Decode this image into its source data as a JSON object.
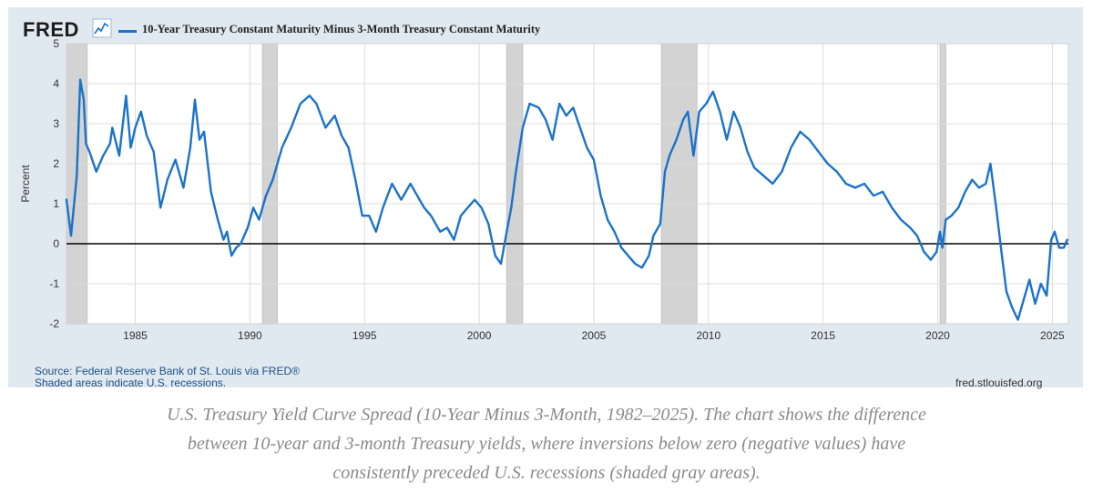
{
  "header": {
    "logo_text": "FRED",
    "logo_icon": "line-chart-icon",
    "accent_color": "#1a73c9"
  },
  "chart_data": {
    "type": "line",
    "title": "",
    "xlabel": "",
    "ylabel": "Percent",
    "xlim": [
      1982.0,
      2025.7
    ],
    "ylim": [
      -2,
      5
    ],
    "yticks": [
      -2,
      -1,
      0,
      1,
      2,
      3,
      4,
      5
    ],
    "xticks": [
      1985,
      1990,
      1995,
      2000,
      2005,
      2010,
      2015,
      2020,
      2025
    ],
    "grid": true,
    "legend_position": "top-left",
    "zero_line": true,
    "recession_color": "#d3d3d3",
    "recessions": [
      [
        1981.55,
        1982.9
      ],
      [
        1990.55,
        1991.2
      ],
      [
        2001.2,
        2001.9
      ],
      [
        2007.95,
        2009.5
      ],
      [
        2020.1,
        2020.35
      ]
    ],
    "series": [
      {
        "name": "10-Year Treasury Constant Maturity Minus 3-Month Treasury Constant Maturity",
        "color": "#1a73c9",
        "x": [
          1982.0,
          1982.2,
          1982.45,
          1982.6,
          1982.75,
          1982.85,
          1983.0,
          1983.3,
          1983.6,
          1983.9,
          1984.0,
          1984.3,
          1984.6,
          1984.8,
          1985.0,
          1985.25,
          1985.5,
          1985.8,
          1986.1,
          1986.4,
          1986.75,
          1987.1,
          1987.4,
          1987.6,
          1987.8,
          1988.0,
          1988.3,
          1988.6,
          1988.85,
          1989.0,
          1989.2,
          1989.4,
          1989.6,
          1989.9,
          1990.15,
          1990.4,
          1990.7,
          1991.0,
          1991.4,
          1991.8,
          1992.2,
          1992.6,
          1992.9,
          1993.3,
          1993.7,
          1994.0,
          1994.3,
          1994.6,
          1994.9,
          1995.2,
          1995.5,
          1995.8,
          1996.2,
          1996.6,
          1997.0,
          1997.3,
          1997.6,
          1997.9,
          1998.3,
          1998.6,
          1998.9,
          1999.2,
          1999.5,
          1999.8,
          2000.1,
          2000.4,
          2000.7,
          2000.95,
          2001.2,
          2001.4,
          2001.6,
          2001.9,
          2002.2,
          2002.6,
          2002.9,
          2003.2,
          2003.5,
          2003.8,
          2004.1,
          2004.4,
          2004.7,
          2005.0,
          2005.3,
          2005.6,
          2005.9,
          2006.2,
          2006.5,
          2006.8,
          2007.1,
          2007.4,
          2007.6,
          2007.9,
          2008.1,
          2008.3,
          2008.6,
          2008.9,
          2009.1,
          2009.35,
          2009.6,
          2009.9,
          2010.2,
          2010.5,
          2010.8,
          2011.1,
          2011.4,
          2011.7,
          2012.0,
          2012.4,
          2012.8,
          2013.2,
          2013.6,
          2014.0,
          2014.4,
          2014.8,
          2015.2,
          2015.6,
          2016.0,
          2016.4,
          2016.8,
          2017.2,
          2017.6,
          2018.0,
          2018.4,
          2018.8,
          2019.1,
          2019.4,
          2019.7,
          2019.95,
          2020.1,
          2020.2,
          2020.35,
          2020.6,
          2020.9,
          2021.2,
          2021.5,
          2021.8,
          2022.1,
          2022.3,
          2022.55,
          2022.8,
          2023.0,
          2023.25,
          2023.5,
          2023.75,
          2024.0,
          2024.25,
          2024.5,
          2024.75,
          2024.95,
          2025.1,
          2025.3,
          2025.5,
          2025.65
        ],
        "values": [
          1.1,
          0.2,
          1.7,
          4.1,
          3.6,
          2.5,
          2.3,
          1.8,
          2.2,
          2.5,
          2.9,
          2.2,
          3.7,
          2.4,
          2.9,
          3.3,
          2.7,
          2.3,
          0.9,
          1.6,
          2.1,
          1.4,
          2.4,
          3.6,
          2.6,
          2.8,
          1.3,
          0.6,
          0.1,
          0.3,
          -0.3,
          -0.1,
          0.0,
          0.4,
          0.9,
          0.6,
          1.2,
          1.6,
          2.4,
          2.9,
          3.5,
          3.7,
          3.5,
          2.9,
          3.2,
          2.7,
          2.4,
          1.6,
          0.7,
          0.7,
          0.3,
          0.9,
          1.5,
          1.1,
          1.5,
          1.2,
          0.9,
          0.7,
          0.3,
          0.4,
          0.1,
          0.7,
          0.9,
          1.1,
          0.9,
          0.5,
          -0.3,
          -0.5,
          0.3,
          0.9,
          1.8,
          2.9,
          3.5,
          3.4,
          3.1,
          2.6,
          3.5,
          3.2,
          3.4,
          2.9,
          2.4,
          2.1,
          1.2,
          0.6,
          0.3,
          -0.1,
          -0.3,
          -0.5,
          -0.6,
          -0.3,
          0.2,
          0.5,
          1.8,
          2.2,
          2.6,
          3.1,
          3.3,
          2.2,
          3.3,
          3.5,
          3.8,
          3.3,
          2.6,
          3.3,
          2.9,
          2.3,
          1.9,
          1.7,
          1.5,
          1.8,
          2.4,
          2.8,
          2.6,
          2.3,
          2.0,
          1.8,
          1.5,
          1.4,
          1.5,
          1.2,
          1.3,
          0.9,
          0.6,
          0.4,
          0.2,
          -0.2,
          -0.4,
          -0.2,
          0.3,
          -0.1,
          0.6,
          0.7,
          0.9,
          1.3,
          1.6,
          1.4,
          1.5,
          2.0,
          0.9,
          -0.3,
          -1.2,
          -1.6,
          -1.9,
          -1.4,
          -0.9,
          -1.5,
          -1.0,
          -1.3,
          0.1,
          0.3,
          -0.1,
          -0.1,
          0.1
        ]
      }
    ]
  },
  "footer": {
    "source": "Source: Federal Reserve Bank of St. Louis via FRED®",
    "note": "Shaded areas indicate U.S. recessions.",
    "site": "fred.stlouisfed.org"
  },
  "caption": "U.S. Treasury Yield Curve Spread (10-Year Minus 3-Month, 1982–2025). The chart shows the difference between 10-year and 3-month Treasury yields, where inversions below zero (negative values) have consistently preceded U.S. recessions (shaded gray areas)."
}
